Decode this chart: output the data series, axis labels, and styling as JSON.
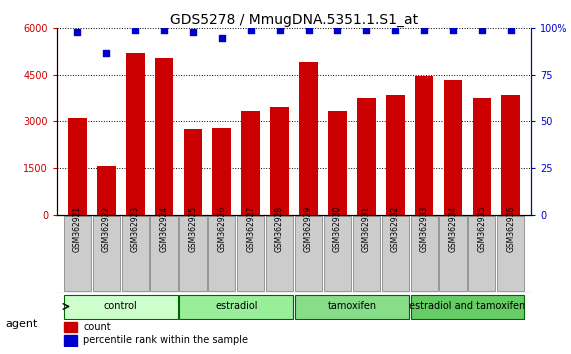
{
  "title": "GDS5278 / MmugDNA.5351.1.S1_at",
  "samples": [
    "GSM362921",
    "GSM362922",
    "GSM362923",
    "GSM362924",
    "GSM362925",
    "GSM362926",
    "GSM362927",
    "GSM362928",
    "GSM362929",
    "GSM362930",
    "GSM362931",
    "GSM362932",
    "GSM362933",
    "GSM362934",
    "GSM362935",
    "GSM362936"
  ],
  "counts": [
    3100,
    1550,
    5200,
    5050,
    2750,
    2800,
    3350,
    3450,
    4900,
    3350,
    3750,
    3850,
    4450,
    4350,
    3750,
    3850
  ],
  "percentiles": [
    98,
    87,
    99,
    99,
    98,
    95,
    99,
    99,
    99,
    99,
    99,
    99,
    99,
    99,
    99,
    99
  ],
  "bar_color": "#cc0000",
  "dot_color": "#0000cc",
  "ylim_left": [
    0,
    6000
  ],
  "ylim_right": [
    0,
    100
  ],
  "yticks_left": [
    0,
    1500,
    3000,
    4500,
    6000
  ],
  "yticks_right": [
    0,
    25,
    50,
    75,
    100
  ],
  "ytick_labels_right": [
    "0",
    "25",
    "50",
    "75",
    "100%"
  ],
  "groups": [
    {
      "label": "control",
      "start": 0,
      "end": 4,
      "color": "#ccffcc"
    },
    {
      "label": "estradiol",
      "start": 4,
      "end": 8,
      "color": "#99ee99"
    },
    {
      "label": "tamoxifen",
      "start": 8,
      "end": 12,
      "color": "#88dd88"
    },
    {
      "label": "estradiol and tamoxifen",
      "start": 12,
      "end": 16,
      "color": "#66cc66"
    }
  ],
  "agent_label": "agent",
  "legend_count_label": "count",
  "legend_pct_label": "percentile rank within the sample",
  "title_fontsize": 10,
  "tick_fontsize": 7,
  "axis_label_color_left": "#cc0000",
  "axis_label_color_right": "#0000cc",
  "sample_box_color": "#cccccc",
  "sample_box_edge": "#888888"
}
